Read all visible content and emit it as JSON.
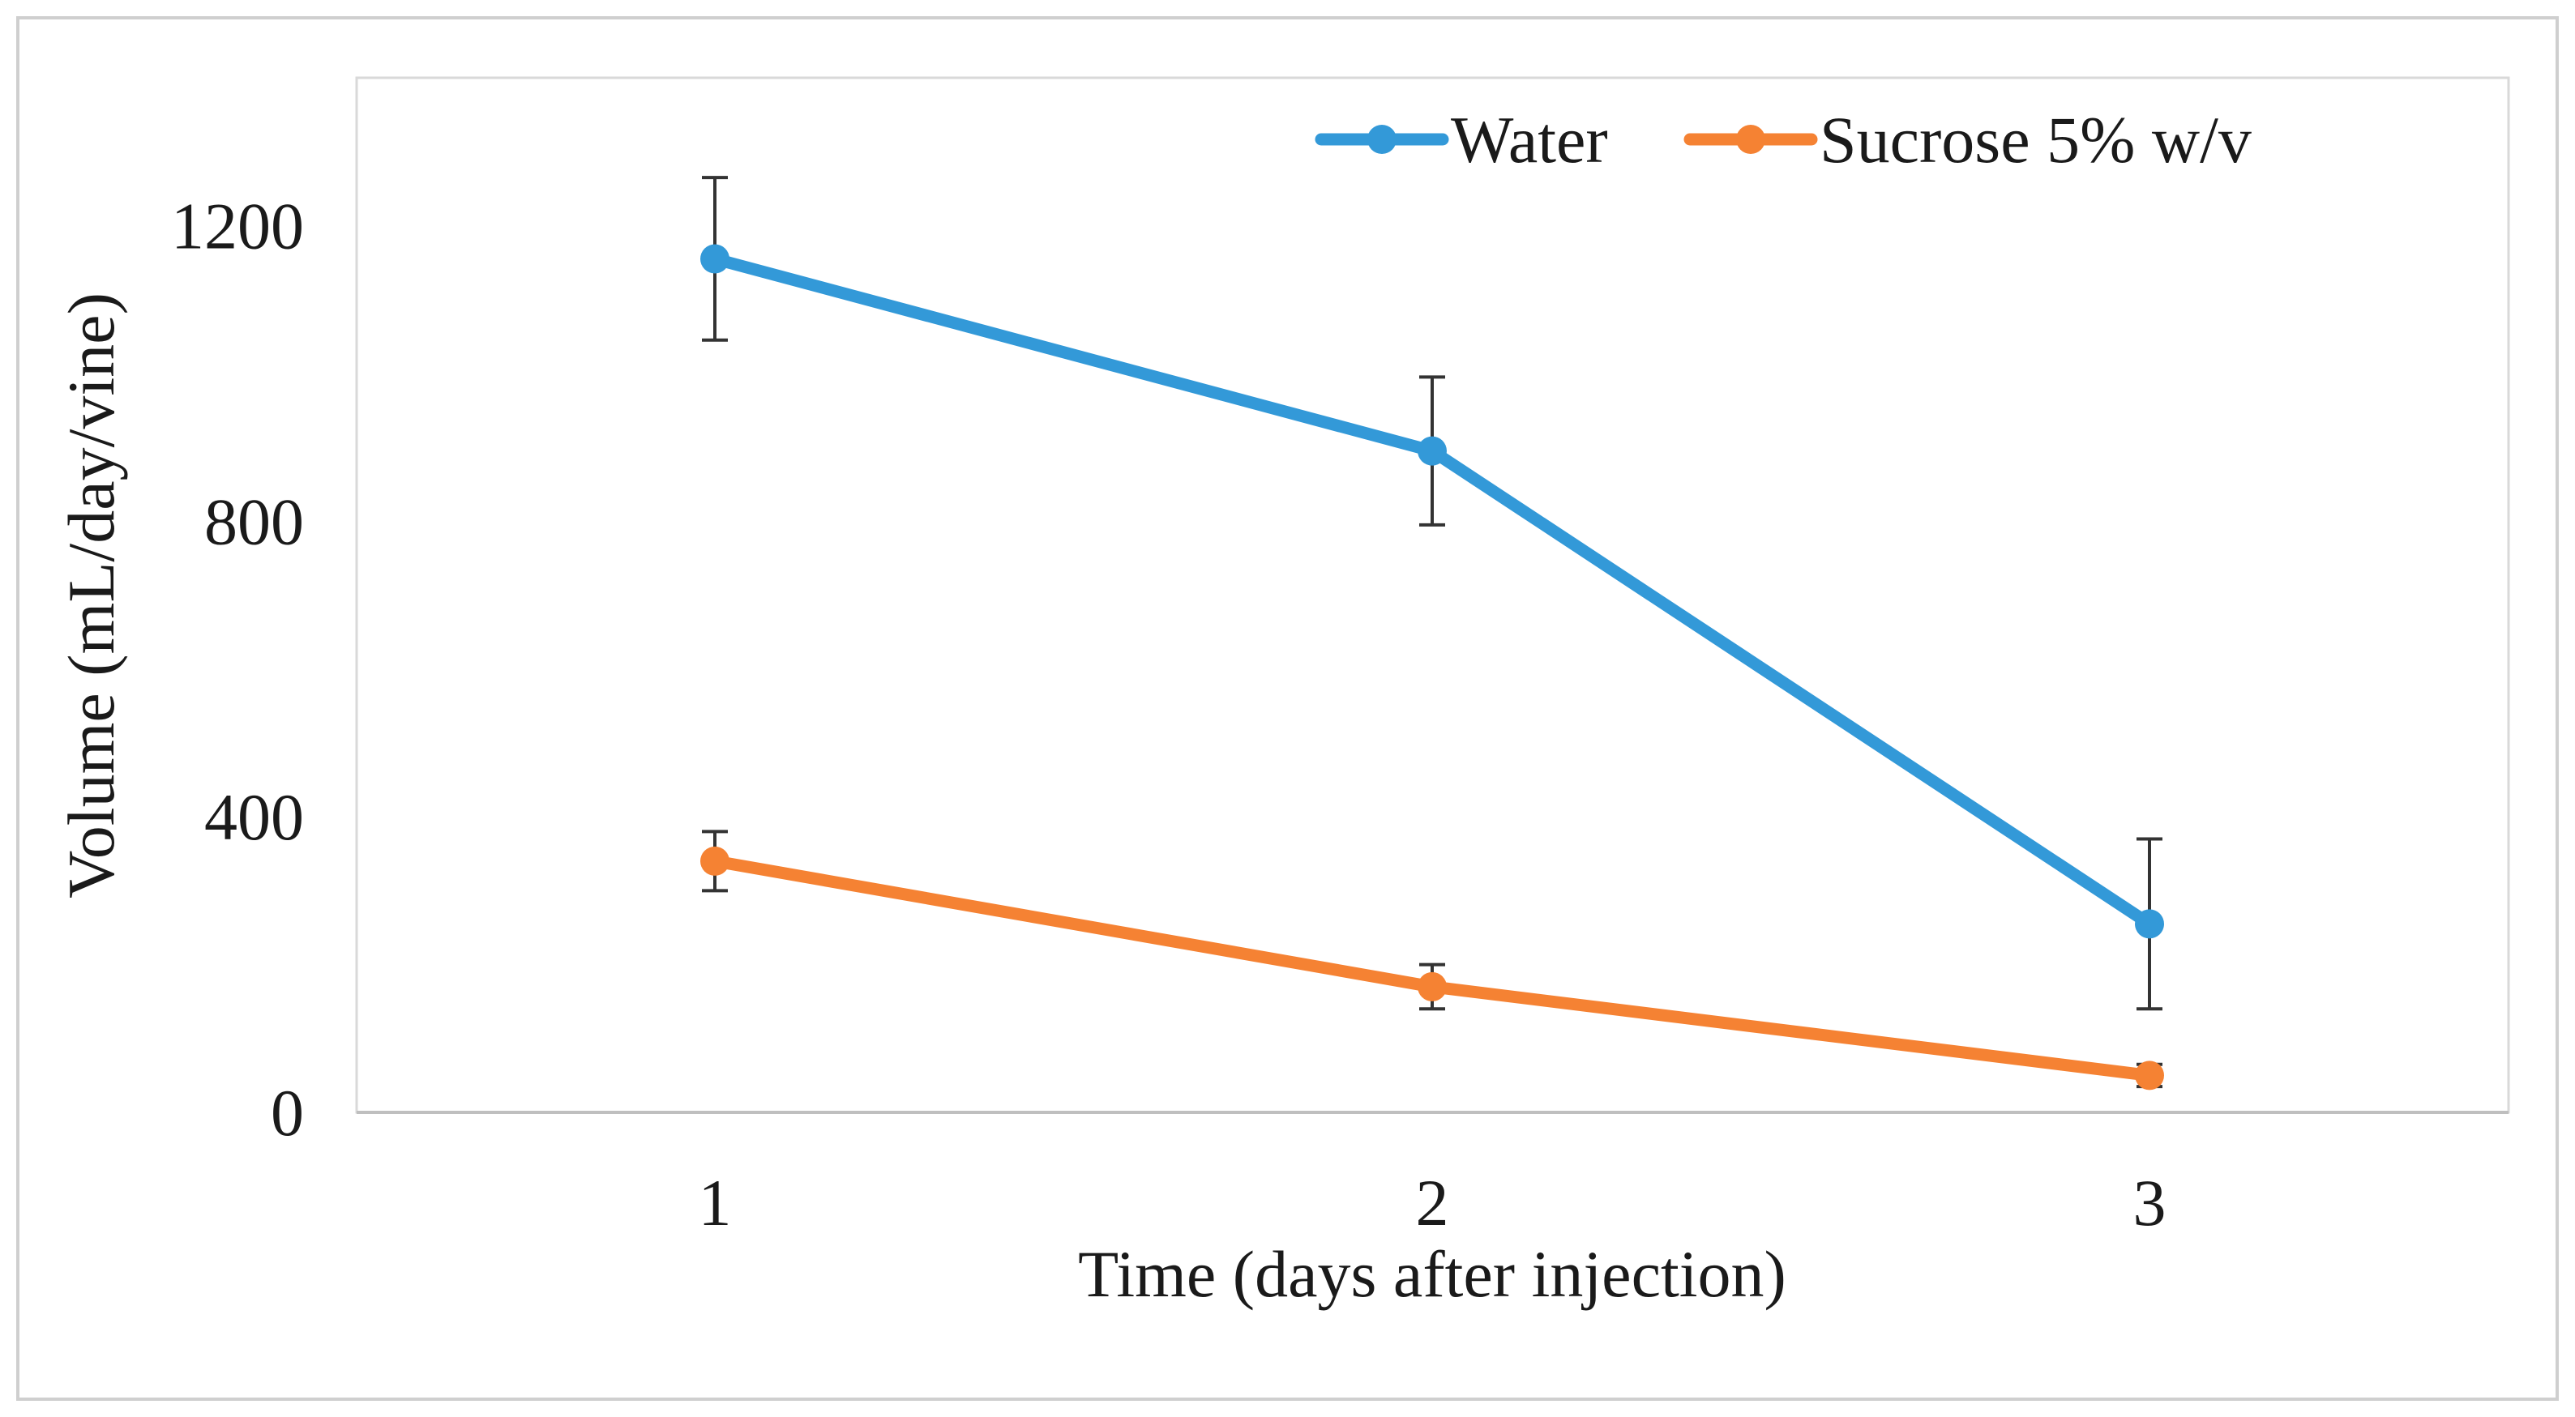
{
  "chart_data": {
    "type": "line",
    "title": "",
    "xlabel": "Time (days after injection)",
    "ylabel": "Volume (mL/day/vine)",
    "categories": [
      "1",
      "2",
      "3"
    ],
    "x": [
      1,
      2,
      3
    ],
    "ylim": [
      0,
      1400
    ],
    "yticks": [
      0,
      400,
      800,
      1200
    ],
    "grid": false,
    "legend_position": "top-right",
    "series": [
      {
        "name": "Water",
        "color": "#3399d8",
        "values": [
          1155,
          895,
          255
        ],
        "error": [
          110,
          100,
          115
        ]
      },
      {
        "name": "Sucrose 5% w/v",
        "color": "#f58233",
        "values": [
          340,
          170,
          50
        ],
        "error": [
          40,
          30,
          15
        ]
      }
    ]
  }
}
